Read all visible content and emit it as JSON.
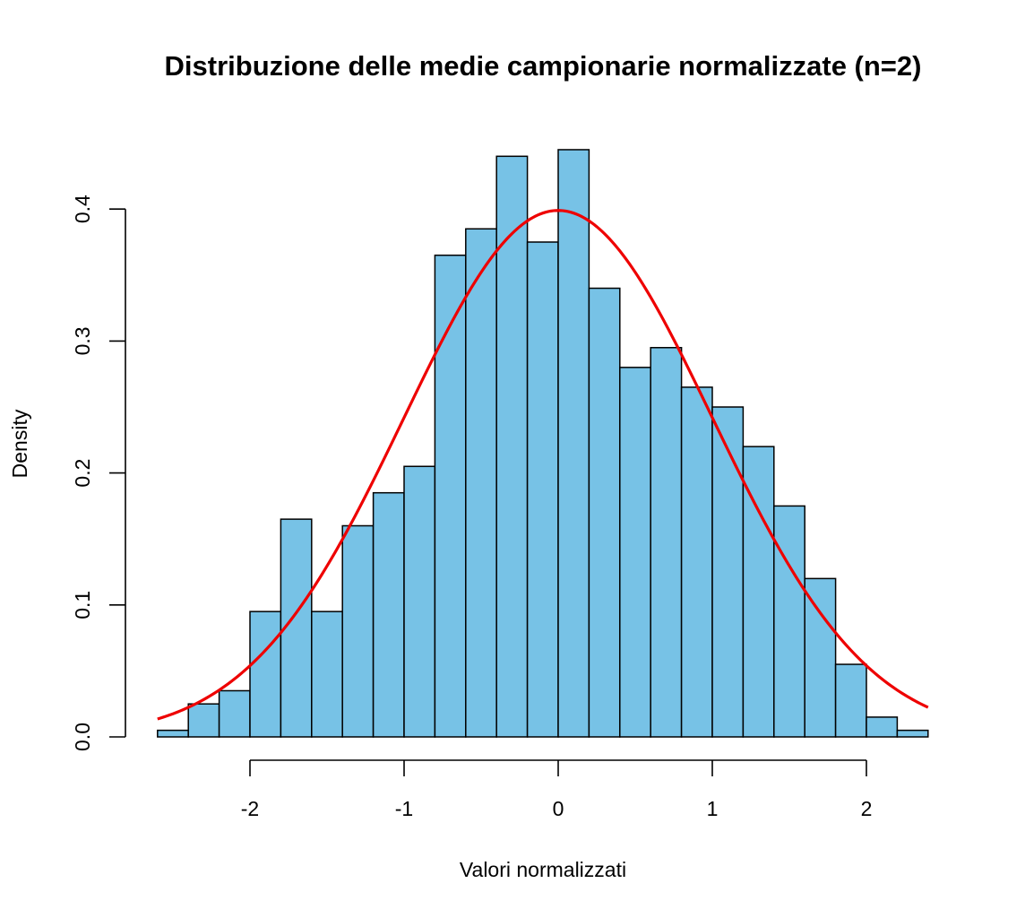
{
  "chart_data": {
    "type": "bar",
    "title": "Distribuzione delle medie campionarie normalizzate (n=2)",
    "xlabel": "Valori normalizzati",
    "ylabel": "Density",
    "xlim": [
      -2.6,
      2.4
    ],
    "ylim": [
      0,
      0.45
    ],
    "x_ticks": [
      -2,
      -1,
      0,
      1,
      2
    ],
    "x_tick_labels": [
      "-2",
      "-1",
      "0",
      "1",
      "2"
    ],
    "y_ticks": [
      0,
      0.1,
      0.2,
      0.3,
      0.4
    ],
    "y_tick_labels": [
      "0.0",
      "0.1",
      "0.2",
      "0.3",
      "0.4"
    ],
    "bin_width": 0.2,
    "bins_start": [
      -2.6,
      -2.4,
      -2.2,
      -2.0,
      -1.8,
      -1.6,
      -1.4,
      -1.2,
      -1.0,
      -0.8,
      -0.6,
      -0.4,
      -0.2,
      0.0,
      0.2,
      0.4,
      0.6,
      0.8,
      1.0,
      1.2,
      1.4,
      1.6,
      1.8,
      2.0,
      2.2
    ],
    "values": [
      0.005,
      0.025,
      0.035,
      0.095,
      0.165,
      0.095,
      0.16,
      0.185,
      0.205,
      0.365,
      0.385,
      0.44,
      0.375,
      0.445,
      0.34,
      0.28,
      0.295,
      0.265,
      0.25,
      0.22,
      0.175,
      0.12,
      0.055,
      0.015,
      0.005
    ],
    "curve": {
      "type": "normal-density",
      "mean": 0,
      "sd": 1
    },
    "grid": false
  },
  "colors": {
    "bar_fill": "#77c2e6",
    "bar_stroke": "#000000",
    "curve": "#ee0000"
  }
}
